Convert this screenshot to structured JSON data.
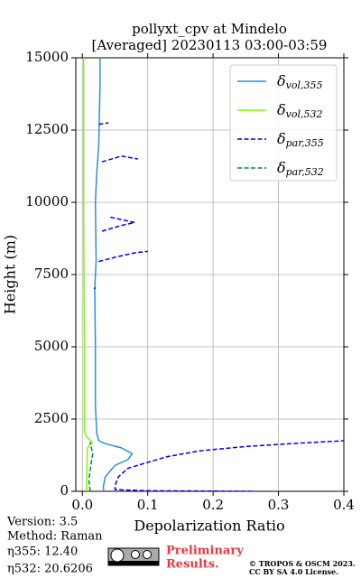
{
  "chart_data": {
    "type": "line",
    "title": [
      "pollyxt_cpv at Mindelo",
      "[Averaged] 20230113 03:00-03:59"
    ],
    "x_label": "Depolarization Ratio",
    "y_label": "Height (m)",
    "xlim": [
      -0.01,
      0.4
    ],
    "ylim": [
      0,
      15000
    ],
    "xticks": [
      {
        "value": 0,
        "label": "0.0"
      },
      0.1,
      0.2,
      0.3,
      0.4
    ],
    "yticks": [
      0,
      2500,
      5000,
      7500,
      10000,
      12500,
      15000
    ],
    "grid": true,
    "legend": "upper right",
    "series": [
      {
        "name": "δvol,355",
        "color": "#2a8fdc",
        "linestyle": "solid",
        "y": [
          0,
          150,
          500,
          900,
          1100,
          1300,
          1500,
          1650,
          1750,
          2000,
          3000,
          5000,
          7000,
          8000,
          10000,
          11000,
          12000,
          13000,
          14000,
          15000
        ],
        "x": [
          0.033,
          0.032,
          0.035,
          0.05,
          0.07,
          0.076,
          0.06,
          0.035,
          0.025,
          0.022,
          0.02,
          0.02,
          0.019,
          0.021,
          0.02,
          0.022,
          0.025,
          0.026,
          0.027,
          0.027
        ]
      },
      {
        "name": "δvol,532",
        "color": "#7cfc00",
        "linestyle": "solid",
        "y": [
          0,
          1500,
          1700,
          1900,
          2100,
          5000,
          10000,
          15000
        ],
        "x": [
          0.006,
          0.008,
          0.015,
          0.006,
          0.003,
          0.003,
          0.002,
          0.002
        ]
      },
      {
        "name": "δpar,355",
        "color": "#0000ee",
        "linestyle": "dashed",
        "y": [
          0,
          20,
          60,
          200,
          500,
          800,
          1000,
          1200,
          1400,
          1550,
          1650,
          1750,
          null,
          7000,
          7050,
          null,
          7950,
          8100,
          8250,
          8300,
          null,
          9000,
          9200,
          9300,
          9500,
          null,
          11400,
          11600,
          11500,
          null,
          12700,
          12750
        ],
        "x": [
          0.26,
          0.1,
          0.05,
          0.05,
          0.055,
          0.07,
          0.1,
          0.13,
          0.18,
          0.25,
          0.32,
          0.4,
          null,
          0.018,
          0.02,
          null,
          0.025,
          0.05,
          0.08,
          0.1,
          null,
          0.03,
          0.06,
          0.08,
          0.04,
          null,
          0.03,
          0.06,
          0.085,
          null,
          0.025,
          0.04
        ]
      },
      {
        "name": "δpar,532",
        "color": "#008a40",
        "linestyle": "dashed",
        "y": [
          0,
          400,
          900,
          1300,
          1700
        ],
        "x": [
          0.012,
          0.01,
          0.013,
          0.016,
          0.012
        ]
      }
    ],
    "info": {
      "version": "Version: 3.5",
      "method": "Method: Raman",
      "eta355": "η355:  12.40",
      "eta532": "η532: 20.6206"
    },
    "notice": [
      "Preliminary",
      "Results."
    ],
    "copyright": [
      "© TROPOS & OSCM 2023.",
      "CC BY SA 4.0 License."
    ]
  }
}
